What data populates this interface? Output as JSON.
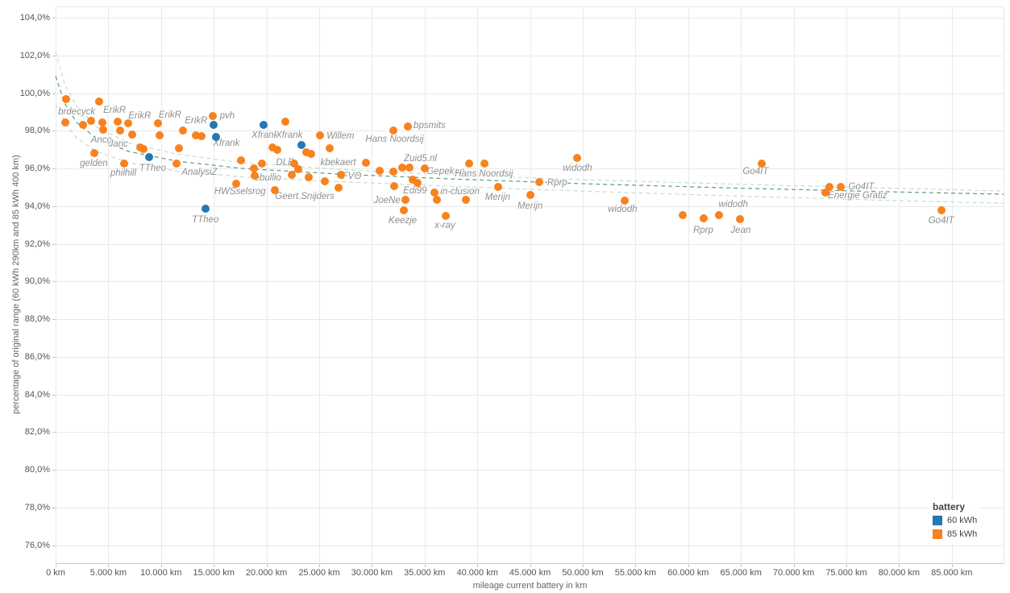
{
  "chart_data": {
    "type": "scatter",
    "xlabel": "mileage current battery in km",
    "ylabel": "percentage of original range (60 kWh 290km and 85 kWh 400 km)",
    "xlim_km": [
      0,
      90000
    ],
    "ylim_pct": [
      74.9,
      104.6
    ],
    "grid": true,
    "x_ticks": [
      {
        "km": 0,
        "label": "0 km"
      },
      {
        "km": 5000,
        "label": "5.000 km"
      },
      {
        "km": 10000,
        "label": "10.000 km"
      },
      {
        "km": 15000,
        "label": "15.000 km"
      },
      {
        "km": 20000,
        "label": "20.000 km"
      },
      {
        "km": 25000,
        "label": "25.000 km"
      },
      {
        "km": 30000,
        "label": "30.000 km"
      },
      {
        "km": 35000,
        "label": "35.000 km"
      },
      {
        "km": 40000,
        "label": "40.000 km"
      },
      {
        "km": 45000,
        "label": "45.000 km"
      },
      {
        "km": 50000,
        "label": "50.000 km"
      },
      {
        "km": 55000,
        "label": "55.000 km"
      },
      {
        "km": 60000,
        "label": "60.000 km"
      },
      {
        "km": 65000,
        "label": "65.000 km"
      },
      {
        "km": 70000,
        "label": "70.000 km"
      },
      {
        "km": 75000,
        "label": "75.000 km"
      },
      {
        "km": 80000,
        "label": "80.000 km"
      },
      {
        "km": 85000,
        "label": "85.000 km"
      }
    ],
    "y_ticks": [
      {
        "pct": 76,
        "label": "76,0%"
      },
      {
        "pct": 78,
        "label": "78,0%"
      },
      {
        "pct": 80,
        "label": "80,0%"
      },
      {
        "pct": 82,
        "label": "82,0%"
      },
      {
        "pct": 84,
        "label": "84,0%"
      },
      {
        "pct": 86,
        "label": "86,0%"
      },
      {
        "pct": 88,
        "label": "88,0%"
      },
      {
        "pct": 90,
        "label": "90,0%"
      },
      {
        "pct": 92,
        "label": "92,0%"
      },
      {
        "pct": 94,
        "label": "94,0%"
      },
      {
        "pct": 96,
        "label": "96,0%"
      },
      {
        "pct": 98,
        "label": "98,0%"
      },
      {
        "pct": 100,
        "label": "100,0%"
      },
      {
        "pct": 102,
        "label": "102,0%"
      },
      {
        "pct": 104,
        "label": "104,0%"
      }
    ],
    "legend": {
      "title": "battery",
      "items": [
        {
          "label": "60 kWh",
          "color": "#2478b4"
        },
        {
          "label": "85 kWh",
          "color": "#f8821e"
        }
      ]
    },
    "series": [
      {
        "name": "60 kWh",
        "color": "#2478b4",
        "points": [
          {
            "km": 8900,
            "pct": 96.6,
            "label": "TTheo",
            "dx": 4,
            "dy": 14
          },
          {
            "km": 14200,
            "pct": 93.86,
            "label": "TTheo",
            "dx": 0,
            "dy": 14
          },
          {
            "km": 15000,
            "pct": 98.31
          },
          {
            "km": 15200,
            "pct": 97.67,
            "label": "Xfrank",
            "dx": 13,
            "dy": 8
          },
          {
            "km": 19700,
            "pct": 98.31,
            "label": "Xfrank",
            "dx": 2,
            "dy": 13
          },
          {
            "km": 23300,
            "pct": 97.24,
            "label": "Xfrank",
            "dx": -15,
            "dy": -12
          }
        ]
      },
      {
        "name": "85 kWh",
        "color": "#f8821e",
        "points": [
          {
            "km": 1000,
            "pct": 99.68,
            "label": "brdecyck",
            "dx": 13,
            "dy": 16
          },
          {
            "km": 900,
            "pct": 98.44
          },
          {
            "km": 2600,
            "pct": 98.31
          },
          {
            "km": 3400,
            "pct": 98.53
          },
          {
            "km": 4100,
            "pct": 99.55
          },
          {
            "km": 4400,
            "pct": 98.44
          },
          {
            "km": 4500,
            "pct": 98.05,
            "label": "Anco",
            "dx": -2,
            "dy": 13
          },
          {
            "km": 5900,
            "pct": 98.48,
            "label": "ErikR",
            "dx": -4,
            "dy": -14
          },
          {
            "km": 6100,
            "pct": 98.01,
            "label": "Janc",
            "dx": -2,
            "dy": 17
          },
          {
            "km": 6900,
            "pct": 98.4,
            "label": "ErikR",
            "dx": 14,
            "dy": -9
          },
          {
            "km": 7300,
            "pct": 97.8
          },
          {
            "km": 8000,
            "pct": 97.11
          },
          {
            "km": 8300,
            "pct": 97.03
          },
          {
            "km": 9700,
            "pct": 98.4,
            "label": "ErikR",
            "dx": 15,
            "dy": -10
          },
          {
            "km": 9900,
            "pct": 97.75
          },
          {
            "km": 11700,
            "pct": 97.07
          },
          {
            "km": 12100,
            "pct": 98.01,
            "label": "ErikR",
            "dx": 16,
            "dy": -12
          },
          {
            "km": 13300,
            "pct": 97.75
          },
          {
            "km": 13800,
            "pct": 97.71
          },
          {
            "km": 3700,
            "pct": 96.81,
            "label": "gelden",
            "dx": -1,
            "dy": 13
          },
          {
            "km": 6500,
            "pct": 96.26,
            "label": "philhill",
            "dx": -1,
            "dy": 12
          },
          {
            "km": 11500,
            "pct": 96.26,
            "label": "AnalysiZ",
            "dx": 28,
            "dy": 11
          },
          {
            "km": 14900,
            "pct": 98.78,
            "label": "pvh",
            "dx": 18,
            "dy": 0
          },
          {
            "km": 17600,
            "pct": 96.43
          },
          {
            "km": 18800,
            "pct": 96.0
          },
          {
            "km": 19600,
            "pct": 96.26
          },
          {
            "km": 17100,
            "pct": 95.19,
            "label": "HWSselsrog",
            "dx": 5,
            "dy": 10
          },
          {
            "km": 18900,
            "pct": 95.61,
            "label": "ebullio",
            "dx": 16,
            "dy": 3
          },
          {
            "km": 20600,
            "pct": 97.11
          },
          {
            "km": 21000,
            "pct": 96.98
          },
          {
            "km": 21800,
            "pct": 98.48
          },
          {
            "km": 20800,
            "pct": 94.84,
            "label": "Geert.Snijders",
            "dx": 37,
            "dy": 8
          },
          {
            "km": 22600,
            "pct": 96.26,
            "label": "DLB",
            "dx": -11,
            "dy": -1
          },
          {
            "km": 23000,
            "pct": 95.96
          },
          {
            "km": 22400,
            "pct": 95.66
          },
          {
            "km": 24000,
            "pct": 95.53
          },
          {
            "km": 23800,
            "pct": 96.86
          },
          {
            "km": 24200,
            "pct": 96.77
          },
          {
            "km": 25500,
            "pct": 95.32
          },
          {
            "km": 26000,
            "pct": 97.07
          },
          {
            "km": 26800,
            "pct": 94.97
          },
          {
            "km": 25100,
            "pct": 97.75,
            "label": "Willem",
            "dx": 25,
            "dy": 1
          },
          {
            "km": 27100,
            "pct": 95.66,
            "label": "FVO",
            "dx": 13,
            "dy": 2
          },
          {
            "km": 29400,
            "pct": 96.3,
            "label": "kbekaert",
            "dx": -34,
            "dy": 0
          },
          {
            "km": 30700,
            "pct": 95.87
          },
          {
            "km": 32000,
            "pct": 95.83
          },
          {
            "km": 32900,
            "pct": 96.04
          },
          {
            "km": 33900,
            "pct": 95.4
          },
          {
            "km": 34300,
            "pct": 95.23
          },
          {
            "km": 33400,
            "pct": 98.23,
            "label": "bpsmits",
            "dx": 27,
            "dy": -1
          },
          {
            "km": 32000,
            "pct": 98.01,
            "label": "Hans Noordsij",
            "dx": 2,
            "dy": 11
          },
          {
            "km": 33600,
            "pct": 96.04,
            "label": "Zuid5.nl",
            "dx": 13,
            "dy": -11
          },
          {
            "km": 35000,
            "pct": 96.0,
            "label": "Gepekop",
            "dx": 26,
            "dy": 4
          },
          {
            "km": 32100,
            "pct": 95.06,
            "label": "Edi99",
            "dx": 26,
            "dy": 6
          },
          {
            "km": 35900,
            "pct": 94.72,
            "label": "in-clusion",
            "dx": 32,
            "dy": -1
          },
          {
            "km": 33200,
            "pct": 94.33,
            "label": "JoeNe",
            "dx": -23,
            "dy": 1
          },
          {
            "km": 33000,
            "pct": 93.78,
            "label": "Keezje",
            "dx": -1,
            "dy": 13
          },
          {
            "km": 37000,
            "pct": 93.48,
            "label": "x-ray",
            "dx": -1,
            "dy": 12
          },
          {
            "km": 36200,
            "pct": 94.33
          },
          {
            "km": 38900,
            "pct": 94.33
          },
          {
            "km": 39200,
            "pct": 96.26
          },
          {
            "km": 40700,
            "pct": 96.26,
            "label": "Hans Noordsij",
            "dx": -1,
            "dy": 13
          },
          {
            "km": 42000,
            "pct": 95.02,
            "label": "Merijn",
            "dx": -1,
            "dy": 13
          },
          {
            "km": 45000,
            "pct": 94.59,
            "label": "Merijn",
            "dx": 0,
            "dy": 14
          },
          {
            "km": 45900,
            "pct": 95.27,
            "label": "Rprp",
            "dx": 22,
            "dy": 1
          },
          {
            "km": 49500,
            "pct": 96.56,
            "label": "widodh",
            "dx": 0,
            "dy": 13
          },
          {
            "km": 54000,
            "pct": 94.29,
            "label": "widodh",
            "dx": -3,
            "dy": 11
          },
          {
            "km": 59500,
            "pct": 93.52
          },
          {
            "km": 61500,
            "pct": 93.35,
            "label": "Rprp",
            "dx": -1,
            "dy": 15
          },
          {
            "km": 62900,
            "pct": 93.52,
            "label": "widodh",
            "dx": 18,
            "dy": -13
          },
          {
            "km": 64900,
            "pct": 93.31,
            "label": "Jean",
            "dx": 1,
            "dy": 14
          },
          {
            "km": 67000,
            "pct": 96.26,
            "label": "Go4IT",
            "dx": -8,
            "dy": 10
          },
          {
            "km": 73400,
            "pct": 95.02
          },
          {
            "km": 74500,
            "pct": 95.02,
            "label": "Go4IT",
            "dx": 25,
            "dy": 0
          },
          {
            "km": 73000,
            "pct": 94.72,
            "label": "Energie Gratiz",
            "dx": 40,
            "dy": 4
          },
          {
            "km": 84000,
            "pct": 93.78,
            "label": "Go4IT",
            "dx": 0,
            "dy": 13
          }
        ]
      }
    ],
    "trend": {
      "center_color": "#5d9b7c",
      "band_color": "#b9d6c8",
      "center": [
        [
          0,
          100.9
        ],
        [
          841,
          99.47
        ],
        [
          1988,
          98.44
        ],
        [
          3899,
          97.58
        ],
        [
          6957,
          96.9
        ],
        [
          11545,
          96.38
        ],
        [
          17661,
          96.0
        ],
        [
          26835,
          95.7
        ],
        [
          37538,
          95.44
        ],
        [
          49771,
          95.19
        ],
        [
          63532,
          94.97
        ],
        [
          78823,
          94.76
        ],
        [
          89908,
          94.63
        ]
      ],
      "upper": [
        [
          0,
          102.2
        ],
        [
          841,
          100.5
        ],
        [
          1988,
          99.3
        ],
        [
          3899,
          98.2
        ],
        [
          6957,
          97.35
        ],
        [
          11545,
          96.75
        ],
        [
          17661,
          96.3
        ],
        [
          26835,
          95.95
        ],
        [
          37538,
          95.65
        ],
        [
          49771,
          95.4
        ],
        [
          63532,
          95.18
        ],
        [
          78823,
          94.95
        ],
        [
          89908,
          94.8
        ]
      ],
      "lower": [
        [
          0,
          99.4
        ],
        [
          841,
          98.5
        ],
        [
          1988,
          97.6
        ],
        [
          3899,
          96.9
        ],
        [
          6957,
          96.3
        ],
        [
          11545,
          95.85
        ],
        [
          17661,
          95.55
        ],
        [
          26835,
          95.3
        ],
        [
          37538,
          95.05
        ],
        [
          49771,
          94.8
        ],
        [
          63532,
          94.55
        ],
        [
          78823,
          94.3
        ],
        [
          89908,
          94.15
        ]
      ]
    }
  }
}
